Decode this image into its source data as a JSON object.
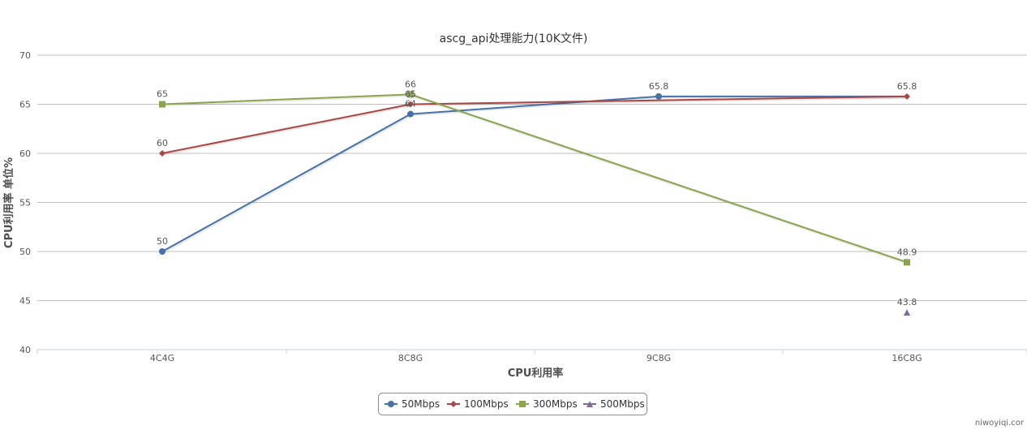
{
  "chart_data": {
    "type": "line",
    "title": "ascg_api处理能力(10K文件)",
    "xlabel": "CPU利用率",
    "ylabel": "CPU利用率 单位%",
    "categories": [
      "4C4G",
      "8C8G",
      "9C8G",
      "16C8G"
    ],
    "ylim": [
      40,
      70
    ],
    "yticks": [
      40,
      45,
      50,
      55,
      60,
      65,
      70
    ],
    "grid": true,
    "legend_position": "bottom-center",
    "series": [
      {
        "name": "50Mbps",
        "color": "#4572a7",
        "marker": "circle",
        "values": [
          50,
          64,
          65.8,
          65.8
        ],
        "labels": [
          "50",
          "64",
          "65.8",
          ""
        ]
      },
      {
        "name": "100Mbps",
        "color": "#aa4643",
        "marker": "diamond",
        "values": [
          60,
          65,
          null,
          65.8
        ],
        "labels": [
          "60",
          "65",
          "",
          "65.8"
        ]
      },
      {
        "name": "300Mbps",
        "color": "#89a54e",
        "marker": "square",
        "values": [
          65,
          66,
          null,
          48.9
        ],
        "labels": [
          "65",
          "66",
          "",
          "48.9"
        ]
      },
      {
        "name": "500Mbps",
        "color": "#80699b",
        "marker": "triangle",
        "values": [
          null,
          null,
          null,
          43.8
        ],
        "labels": [
          "",
          "",
          "",
          "43.8"
        ]
      }
    ]
  },
  "watermark": "niwoyiqi.cor"
}
